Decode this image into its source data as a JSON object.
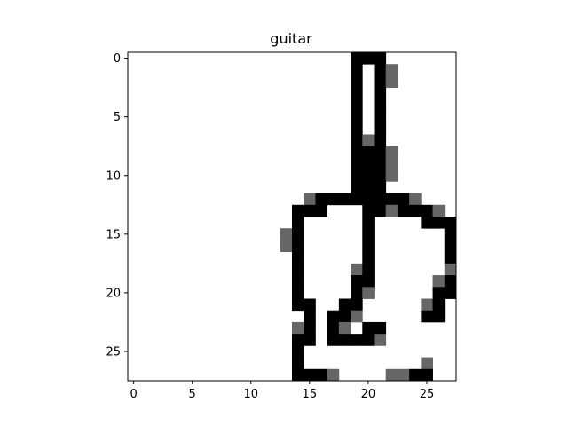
{
  "chart_data": {
    "type": "heatmap",
    "title": "guitar",
    "xlabel": "",
    "ylabel": "",
    "xlim": [
      -0.5,
      27.5
    ],
    "ylim": [
      27.5,
      -0.5
    ],
    "xticks": [
      0,
      5,
      10,
      15,
      20,
      25
    ],
    "yticks": [
      0,
      5,
      10,
      15,
      20,
      25
    ],
    "xtick_labels": [
      "0",
      "5",
      "10",
      "15",
      "20",
      "25"
    ],
    "ytick_labels": [
      "0",
      "5",
      "10",
      "15",
      "20",
      "25"
    ],
    "colormap": "gray_r",
    "grid": false,
    "shape": [
      28,
      28
    ],
    "cells": [
      [
        0,
        19,
        1
      ],
      [
        0,
        20,
        1
      ],
      [
        0,
        21,
        1
      ],
      [
        1,
        19,
        1
      ],
      [
        1,
        21,
        1
      ],
      [
        1,
        22,
        0.6
      ],
      [
        2,
        19,
        1
      ],
      [
        2,
        21,
        1
      ],
      [
        2,
        22,
        0.6
      ],
      [
        3,
        19,
        1
      ],
      [
        3,
        21,
        1
      ],
      [
        4,
        19,
        1
      ],
      [
        4,
        21,
        1
      ],
      [
        5,
        19,
        1
      ],
      [
        5,
        21,
        1
      ],
      [
        6,
        19,
        1
      ],
      [
        6,
        21,
        1
      ],
      [
        7,
        19,
        1
      ],
      [
        7,
        20,
        0.6
      ],
      [
        7,
        21,
        1
      ],
      [
        8,
        19,
        1
      ],
      [
        8,
        20,
        1
      ],
      [
        8,
        21,
        1
      ],
      [
        8,
        22,
        0.6
      ],
      [
        9,
        19,
        1
      ],
      [
        9,
        20,
        1
      ],
      [
        9,
        21,
        1
      ],
      [
        9,
        22,
        0.6
      ],
      [
        10,
        19,
        1
      ],
      [
        10,
        20,
        1
      ],
      [
        10,
        21,
        1
      ],
      [
        10,
        22,
        0.6
      ],
      [
        11,
        19,
        1
      ],
      [
        11,
        20,
        1
      ],
      [
        11,
        21,
        1
      ],
      [
        12,
        15,
        0.6
      ],
      [
        12,
        16,
        1
      ],
      [
        12,
        17,
        1
      ],
      [
        12,
        18,
        1
      ],
      [
        12,
        19,
        1
      ],
      [
        12,
        20,
        1
      ],
      [
        12,
        21,
        1
      ],
      [
        12,
        22,
        1
      ],
      [
        12,
        23,
        1
      ],
      [
        12,
        24,
        0.6
      ],
      [
        13,
        14,
        1
      ],
      [
        13,
        15,
        1
      ],
      [
        13,
        16,
        1
      ],
      [
        13,
        20,
        1
      ],
      [
        13,
        21,
        1
      ],
      [
        13,
        22,
        0.6
      ],
      [
        13,
        23,
        1
      ],
      [
        13,
        24,
        1
      ],
      [
        13,
        25,
        1
      ],
      [
        13,
        26,
        0.6
      ],
      [
        14,
        14,
        1
      ],
      [
        14,
        20,
        1
      ],
      [
        14,
        25,
        1
      ],
      [
        14,
        26,
        1
      ],
      [
        14,
        27,
        1
      ],
      [
        15,
        13,
        0.6
      ],
      [
        15,
        14,
        1
      ],
      [
        15,
        20,
        1
      ],
      [
        15,
        27,
        1
      ],
      [
        16,
        13,
        0.6
      ],
      [
        16,
        14,
        1
      ],
      [
        16,
        20,
        1
      ],
      [
        16,
        27,
        1
      ],
      [
        17,
        14,
        1
      ],
      [
        17,
        20,
        1
      ],
      [
        17,
        27,
        1
      ],
      [
        18,
        14,
        1
      ],
      [
        18,
        19,
        0.6
      ],
      [
        18,
        20,
        1
      ],
      [
        18,
        27,
        0.6
      ],
      [
        19,
        14,
        1
      ],
      [
        19,
        19,
        1
      ],
      [
        19,
        20,
        1
      ],
      [
        19,
        26,
        0.6
      ],
      [
        19,
        27,
        1
      ],
      [
        20,
        14,
        1
      ],
      [
        20,
        19,
        1
      ],
      [
        20,
        20,
        0.6
      ],
      [
        20,
        26,
        1
      ],
      [
        20,
        27,
        1
      ],
      [
        21,
        14,
        1
      ],
      [
        21,
        15,
        1
      ],
      [
        21,
        18,
        1
      ],
      [
        21,
        19,
        1
      ],
      [
        21,
        25,
        0.6
      ],
      [
        21,
        26,
        1
      ],
      [
        22,
        15,
        1
      ],
      [
        22,
        17,
        1
      ],
      [
        22,
        18,
        1
      ],
      [
        22,
        19,
        0.6
      ],
      [
        22,
        25,
        1
      ],
      [
        22,
        26,
        1
      ],
      [
        23,
        14,
        0.6
      ],
      [
        23,
        15,
        1
      ],
      [
        23,
        17,
        1
      ],
      [
        23,
        18,
        0.6
      ],
      [
        23,
        20,
        1
      ],
      [
        23,
        21,
        1
      ],
      [
        24,
        14,
        1
      ],
      [
        24,
        15,
        1
      ],
      [
        24,
        17,
        1
      ],
      [
        24,
        18,
        1
      ],
      [
        24,
        19,
        1
      ],
      [
        24,
        20,
        1
      ],
      [
        24,
        21,
        0.6
      ],
      [
        25,
        14,
        1
      ],
      [
        26,
        14,
        1
      ],
      [
        26,
        25,
        0.6
      ],
      [
        27,
        14,
        1
      ],
      [
        27,
        15,
        1
      ],
      [
        27,
        16,
        1
      ],
      [
        27,
        17,
        0.6
      ],
      [
        27,
        22,
        0.6
      ],
      [
        27,
        23,
        0.6
      ],
      [
        27,
        24,
        1
      ],
      [
        27,
        25,
        1
      ]
    ],
    "colors": {
      "full": "#000000",
      "partial": "#666666",
      "background": "#ffffff"
    }
  }
}
